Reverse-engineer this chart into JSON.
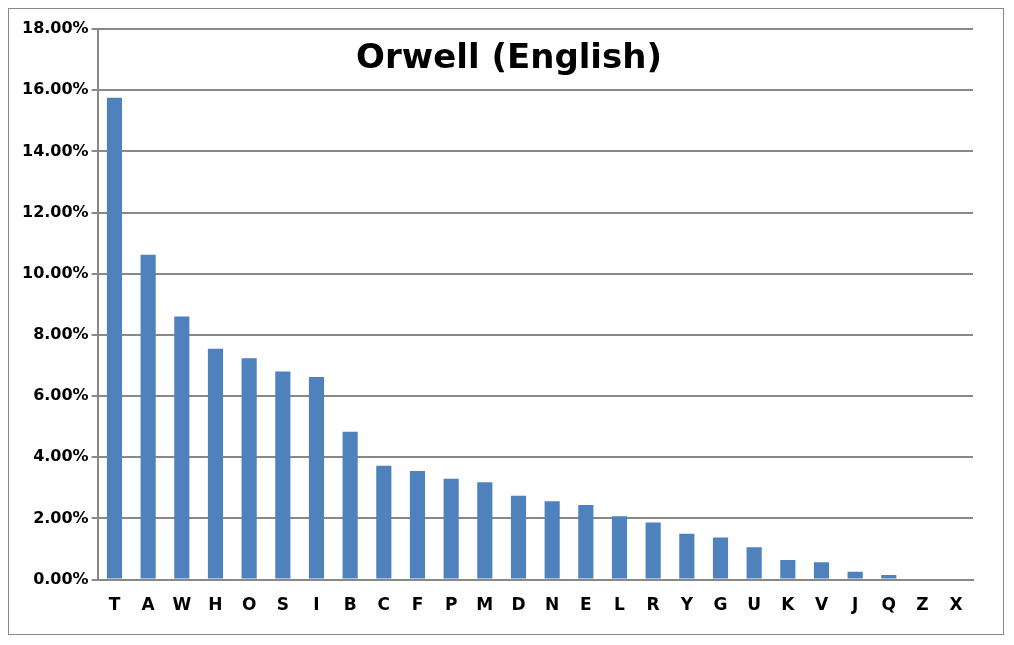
{
  "chart_data": {
    "type": "bar",
    "title": "Orwell (English)",
    "categories": [
      "T",
      "A",
      "W",
      "H",
      "O",
      "S",
      "I",
      "B",
      "C",
      "F",
      "P",
      "M",
      "D",
      "N",
      "E",
      "L",
      "R",
      "Y",
      "G",
      "U",
      "K",
      "V",
      "J",
      "Q",
      "Z",
      "X"
    ],
    "values": [
      15.75,
      10.62,
      8.6,
      7.55,
      7.24,
      6.8,
      6.62,
      4.83,
      3.72,
      3.55,
      3.3,
      3.18,
      2.74,
      2.56,
      2.44,
      2.07,
      1.87,
      1.5,
      1.38,
      1.06,
      0.64,
      0.57,
      0.26,
      0.15,
      null,
      0
    ],
    "color": "#4f81bd",
    "ylim": [
      0,
      18
    ],
    "yticks": [
      {
        "value": 0,
        "label": "0.00%"
      },
      {
        "value": 2,
        "label": "2.00%"
      },
      {
        "value": 4,
        "label": "4.00%"
      },
      {
        "value": 6,
        "label": "6.00%"
      },
      {
        "value": 8,
        "label": "8.00%"
      },
      {
        "value": 10,
        "label": "10.00%"
      },
      {
        "value": 12,
        "label": "12.00%"
      },
      {
        "value": 14,
        "label": "14.00%"
      },
      {
        "value": 16,
        "label": "16.00%"
      },
      {
        "value": 18,
        "label": "18.00%"
      }
    ],
    "grid": "y",
    "legend": false
  }
}
